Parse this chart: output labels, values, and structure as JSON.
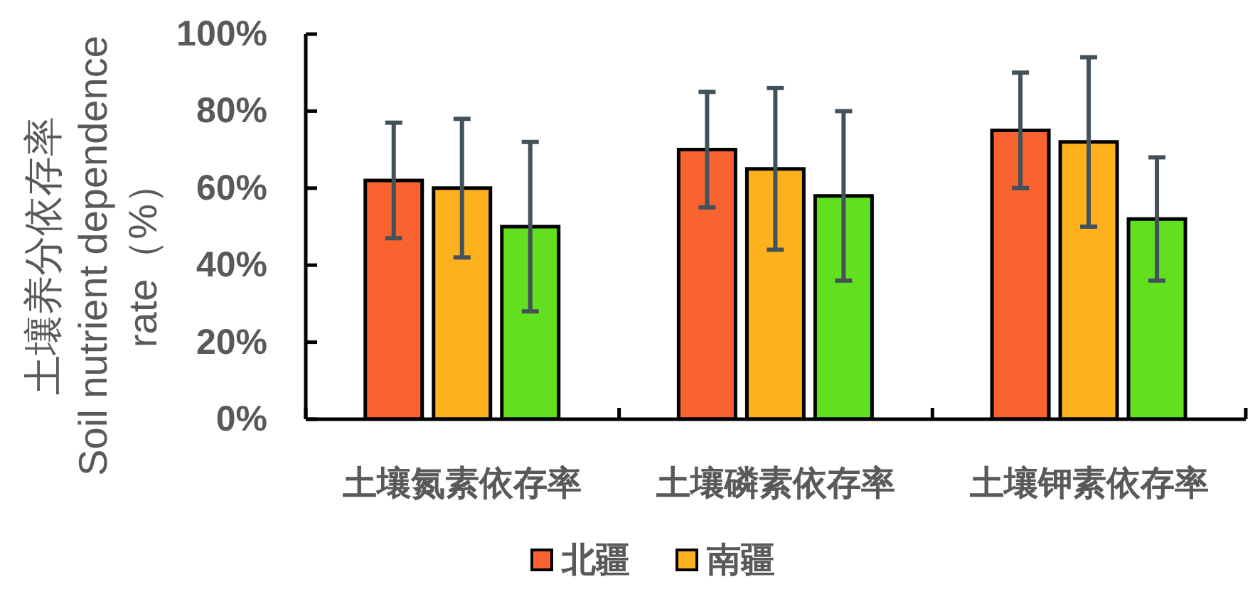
{
  "chart_data": {
    "type": "bar",
    "ylabel": "土壤养分依存率\nSoil nutrient dependence\nrate（%）",
    "categories": [
      "土壤氮素依存率",
      "土壤磷素依存率",
      "土壤钾素依存率"
    ],
    "series": [
      {
        "name": "北疆",
        "color": "#f96330",
        "values": [
          62,
          70,
          75
        ],
        "errors": [
          15,
          15,
          15
        ]
      },
      {
        "name": "南疆",
        "color": "#fdb21d",
        "values": [
          60,
          65,
          72
        ],
        "errors": [
          18,
          21,
          22
        ]
      },
      {
        "color": "#62e01f",
        "values": [
          50,
          58,
          52
        ],
        "errors": [
          22,
          22,
          16
        ]
      }
    ],
    "ylim": [
      0,
      100
    ],
    "yticks": [
      {
        "value": 0,
        "label": "0%"
      },
      {
        "value": 20,
        "label": "20%"
      },
      {
        "value": 40,
        "label": "40%"
      },
      {
        "value": 60,
        "label": "60%"
      },
      {
        "value": 80,
        "label": "80%"
      },
      {
        "value": 100,
        "label": "100%"
      }
    ],
    "legend": "bottom"
  }
}
